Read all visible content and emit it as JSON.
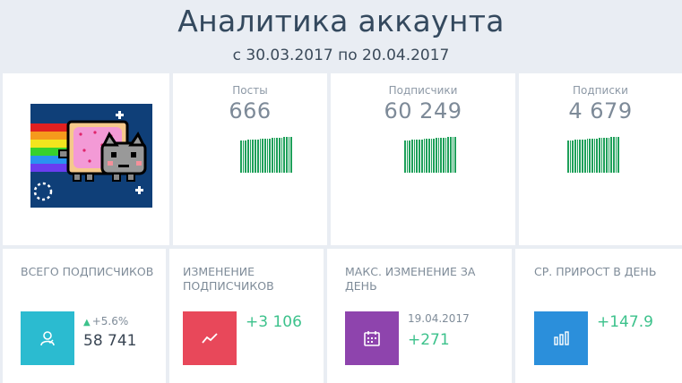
{
  "page": {
    "title": "Аналитика аккаунта",
    "period": "с 30.03.2017 по 20.04.2017"
  },
  "stats": [
    {
      "label": "Посты",
      "value": "666"
    },
    {
      "label": "Подписчики",
      "value": "60 249"
    },
    {
      "label": "Подписки",
      "value": "4 679"
    }
  ],
  "cards": {
    "total_followers": {
      "label": "Всего подписчиков",
      "change_pct": "+5.6%",
      "value": "58 741",
      "color": "#2bbbd0",
      "icon": "user-icon"
    },
    "followers_change": {
      "label": "Изменение подписчиков",
      "value": "+3 106",
      "color": "#e8485a",
      "icon": "trend-line-icon"
    },
    "max_change": {
      "label": "Макс. изменение за день",
      "date": "19.04.2017",
      "value": "+271",
      "color": "#8e44ad",
      "icon": "calendar-icon"
    },
    "avg_growth": {
      "label": "Ср. прирост в день",
      "value": "+147.9",
      "color": "#2b8fdb",
      "icon": "bar-chart-icon"
    }
  },
  "theme": {
    "accent_green": "#3dc28c",
    "bar_green": "#1ea05a"
  }
}
